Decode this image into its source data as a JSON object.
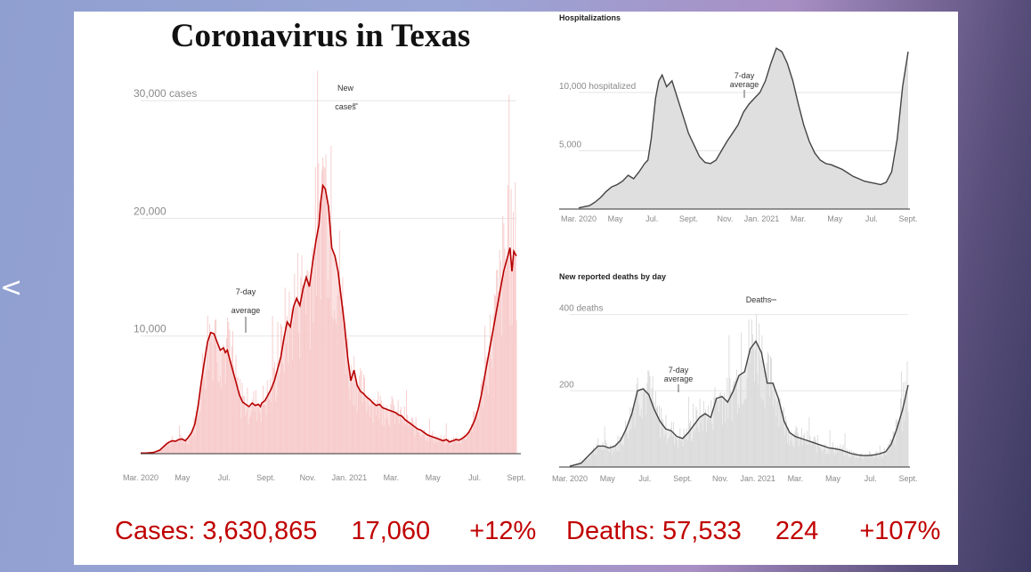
{
  "title": "Coronavirus in Texas",
  "nav": {
    "prev_icon": "chevron-left-icon",
    "prev_glyph": "<"
  },
  "colors": {
    "cases_line": "#b80000",
    "cases_bars": "#f7c9c9",
    "grey_line": "#444444",
    "grey_fill": "#dcdcdc"
  },
  "stats": {
    "cases_label": "Cases:",
    "cases_total": "3,630,865",
    "cases_daily": "17,060",
    "cases_change": "+12%",
    "deaths_label": "Deaths:",
    "deaths_total": "57,533",
    "deaths_daily": "224",
    "deaths_change": "+107%"
  },
  "chart_data": [
    {
      "type": "area",
      "id": "cases",
      "title": "",
      "xlabel": "",
      "ylabel": "",
      "x_ticks": [
        "Mar. 2020",
        "May",
        "Jul.",
        "Sept.",
        "Nov.",
        "Jan. 2021",
        "Mar.",
        "May",
        "Jul.",
        "Sept."
      ],
      "y_ticks": [
        "10,000",
        "20,000",
        "30,000 cases"
      ],
      "ylim": [
        0,
        31000
      ],
      "annotations": [
        "7-day average",
        "New cases"
      ],
      "x": [
        0,
        1,
        2,
        3,
        4,
        4.5,
        5,
        5.5,
        6,
        6.5,
        7,
        7.5,
        8,
        8.5,
        9,
        9.5,
        10,
        10.5,
        11,
        11.5,
        12,
        12.5,
        13,
        13.3,
        13.6,
        14,
        14.5,
        15,
        15.5,
        16,
        16.5,
        17,
        17.5,
        18,
        18.5,
        18.8,
        19,
        19.5,
        20,
        20.5,
        21,
        21.5,
        22,
        22.5,
        23,
        23.5,
        24,
        24.5,
        25,
        25.5,
        26,
        26.5,
        27,
        27.5,
        28,
        28.3,
        28.6,
        29,
        29.5,
        30,
        30.5,
        31,
        31.5,
        32,
        32.5,
        33,
        33.5,
        34,
        34.5,
        35,
        35.5,
        36,
        36.5,
        37,
        37.5,
        38,
        38.5,
        39,
        39.5,
        40,
        40.5,
        41,
        41.5,
        42,
        42.5,
        43,
        43.5,
        44,
        44.5,
        45,
        45.5,
        46,
        46.5,
        47,
        47.5,
        48,
        48.5,
        49,
        49.5,
        50,
        50.5,
        51,
        51.5,
        52,
        52.5,
        53,
        53.5,
        54,
        54.5,
        55,
        55.5,
        56,
        56.5,
        57,
        57.5,
        58,
        58.3,
        58.6,
        59
      ],
      "series": [
        {
          "name": "7-day average",
          "values": [
            50,
            60,
            100,
            300,
            800,
            1000,
            1100,
            1050,
            1200,
            1250,
            1100,
            1400,
            1800,
            2500,
            4000,
            6000,
            7800,
            9500,
            10300,
            10200,
            9500,
            8800,
            9000,
            8600,
            8800,
            8000,
            7000,
            6000,
            5000,
            4400,
            4200,
            4000,
            4300,
            4100,
            4200,
            4000,
            4300,
            4500,
            5000,
            5500,
            6200,
            7200,
            8200,
            9800,
            11200,
            10800,
            12500,
            13200,
            12600,
            14000,
            15000,
            14200,
            16200,
            18000,
            19500,
            21500,
            22800,
            22500,
            21000,
            17500,
            16800,
            15500,
            13200,
            11000,
            8200,
            6200,
            7100,
            5800,
            5300,
            5100,
            4800,
            4600,
            4300,
            4100,
            4200,
            3900,
            3800,
            3700,
            3600,
            3500,
            3300,
            3200,
            2900,
            2700,
            2500,
            2300,
            2100,
            2000,
            1800,
            1600,
            1500,
            1400,
            1300,
            1200,
            1100,
            1200,
            1000,
            1100,
            1200,
            1150,
            1300,
            1500,
            1800,
            2300,
            2900,
            3800,
            5000,
            6500,
            8000,
            9500,
            11000,
            12500,
            14000,
            15500,
            16500,
            17500,
            15500,
            17200,
            16800
          ]
        }
      ]
    },
    {
      "type": "area",
      "id": "hospitalizations",
      "title": "Hospitalizations",
      "x_ticks": [
        "Mar. 2020",
        "May",
        "Jul.",
        "Sept.",
        "Nov.",
        "Jan. 2021",
        "Mar.",
        "May",
        "Jul.",
        "Sept."
      ],
      "y_ticks": [
        "5,000",
        "10,000 hospitalized"
      ],
      "ylim": [
        0,
        14500
      ],
      "annotations": [
        "7-day average"
      ],
      "x": [
        0,
        1,
        1.5,
        2,
        2.5,
        3,
        3.5,
        4,
        4.5,
        5,
        5.5,
        6,
        6.3,
        6.6,
        7,
        7.3,
        7.6,
        8,
        8.5,
        9,
        9.5,
        10,
        10.5,
        11,
        11.5,
        12,
        12.5,
        13,
        13.5,
        14,
        14.5,
        15,
        15.5,
        16,
        16.5,
        17,
        17.5,
        18,
        18.5,
        19,
        19.5,
        20,
        20.5,
        21,
        21.5,
        22,
        22.5,
        23,
        23.5,
        24,
        24.5,
        25,
        25.5,
        26,
        26.5,
        27,
        27.5,
        28,
        28.5,
        29,
        29.5,
        30
      ],
      "series": [
        {
          "name": "7-day average",
          "values": [
            100,
            300,
            600,
            1000,
            1500,
            1900,
            2100,
            2400,
            2900,
            2600,
            3200,
            3900,
            4200,
            6000,
            9500,
            11000,
            11500,
            10500,
            11000,
            9500,
            8000,
            6500,
            5500,
            4500,
            4000,
            3900,
            4200,
            5000,
            5800,
            6500,
            7200,
            8300,
            9000,
            9500,
            10000,
            11000,
            12500,
            13800,
            13500,
            12500,
            11000,
            9000,
            7200,
            5800,
            4800,
            4200,
            3900,
            3800,
            3600,
            3400,
            3100,
            2800,
            2600,
            2400,
            2300,
            2200,
            2100,
            2300,
            3200,
            6000,
            10500,
            13500
          ]
        }
      ]
    },
    {
      "type": "area",
      "id": "deaths",
      "title": "New reported deaths by day",
      "x_ticks": [
        "Mar. 2020",
        "May",
        "Jul.",
        "Sept.",
        "Nov.",
        "Jan. 2021",
        "Mar.",
        "May",
        "Jul.",
        "Sept."
      ],
      "y_ticks": [
        "200",
        "400 deaths"
      ],
      "ylim": [
        0,
        420
      ],
      "annotations": [
        "7-day average",
        "Deaths"
      ],
      "x": [
        0,
        1,
        1.5,
        2,
        2.5,
        3,
        3.5,
        4,
        4.5,
        5,
        5.5,
        6,
        6.5,
        7,
        7.5,
        8,
        8.5,
        9,
        9.5,
        10,
        10.5,
        11,
        11.5,
        12,
        12.5,
        13,
        13.5,
        14,
        14.5,
        15,
        15.5,
        16,
        16.5,
        17,
        17.5,
        18,
        18.5,
        19,
        19.5,
        20,
        20.5,
        21,
        21.5,
        22,
        22.5,
        23,
        23.5,
        24,
        24.5,
        25,
        25.5,
        26,
        26.5,
        27,
        27.5,
        28,
        28.5,
        29,
        29.5,
        30
      ],
      "series": [
        {
          "name": "7-day average",
          "values": [
            2,
            10,
            25,
            40,
            55,
            55,
            50,
            55,
            70,
            100,
            140,
            200,
            205,
            190,
            150,
            120,
            100,
            95,
            80,
            75,
            90,
            110,
            130,
            140,
            130,
            180,
            185,
            170,
            200,
            240,
            250,
            310,
            330,
            300,
            220,
            220,
            180,
            120,
            90,
            80,
            75,
            70,
            65,
            60,
            55,
            50,
            48,
            45,
            40,
            35,
            32,
            30,
            30,
            32,
            35,
            40,
            60,
            100,
            150,
            215
          ]
        }
      ]
    }
  ]
}
